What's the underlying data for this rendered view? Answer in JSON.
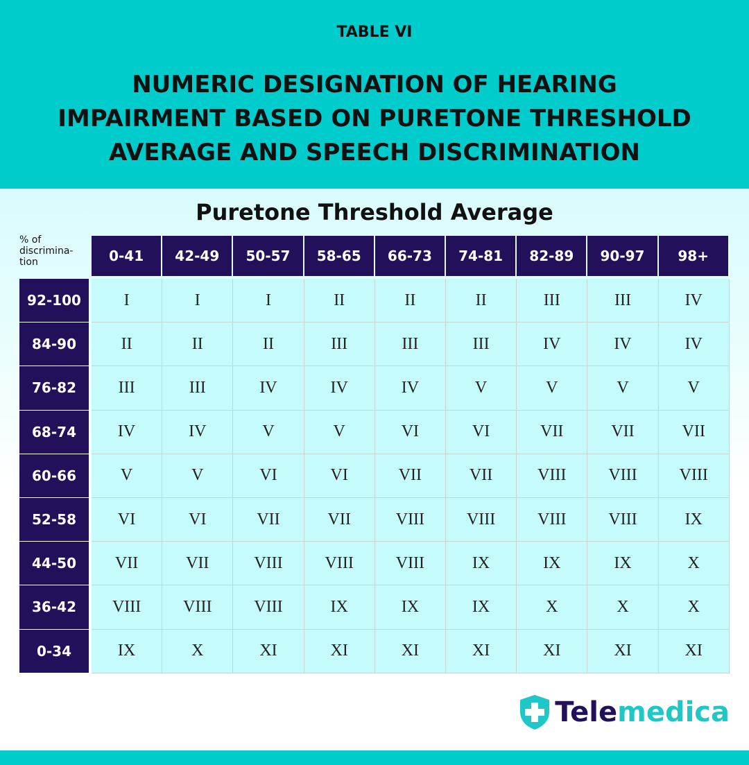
{
  "header": {
    "label": "TABLE VI",
    "title_lines": [
      "NUMERIC DESIGNATION OF HEARING",
      "IMPAIRMENT BASED ON PURETONE THRESHOLD",
      "AVERAGE AND SPEECH DISCRIMINATION"
    ]
  },
  "table": {
    "caption": "Puretone Threshold Average",
    "corner_lines": [
      "% of",
      "discrimina-",
      "tion"
    ],
    "columns": [
      "0-41",
      "42-49",
      "50-57",
      "58-65",
      "66-73",
      "74-81",
      "82-89",
      "90-97",
      "98+"
    ],
    "rows": [
      {
        "label": "92-100",
        "cells": [
          "I",
          "I",
          "I",
          "II",
          "II",
          "II",
          "III",
          "III",
          "IV"
        ]
      },
      {
        "label": "84-90",
        "cells": [
          "II",
          "II",
          "II",
          "III",
          "III",
          "III",
          "IV",
          "IV",
          "IV"
        ]
      },
      {
        "label": "76-82",
        "cells": [
          "III",
          "III",
          "IV",
          "IV",
          "IV",
          "V",
          "V",
          "V",
          "V"
        ]
      },
      {
        "label": "68-74",
        "cells": [
          "IV",
          "IV",
          "V",
          "V",
          "VI",
          "VI",
          "VII",
          "VII",
          "VII"
        ]
      },
      {
        "label": "60-66",
        "cells": [
          "V",
          "V",
          "VI",
          "VI",
          "VII",
          "VII",
          "VIII",
          "VIII",
          "VIII"
        ]
      },
      {
        "label": "52-58",
        "cells": [
          "VI",
          "VI",
          "VII",
          "VII",
          "VIII",
          "VIII",
          "VIII",
          "VIII",
          "IX"
        ]
      },
      {
        "label": "44-50",
        "cells": [
          "VII",
          "VII",
          "VIII",
          "VIII",
          "VIII",
          "IX",
          "IX",
          "IX",
          "X"
        ]
      },
      {
        "label": "36-42",
        "cells": [
          "VIII",
          "VIII",
          "VIII",
          "IX",
          "IX",
          "IX",
          "X",
          "X",
          "X"
        ]
      },
      {
        "label": "0-34",
        "cells": [
          "IX",
          "X",
          "XI",
          "XI",
          "XI",
          "XI",
          "XI",
          "XI",
          "XI"
        ]
      }
    ]
  },
  "brand": {
    "parts": [
      "Tele",
      "medica"
    ]
  }
}
